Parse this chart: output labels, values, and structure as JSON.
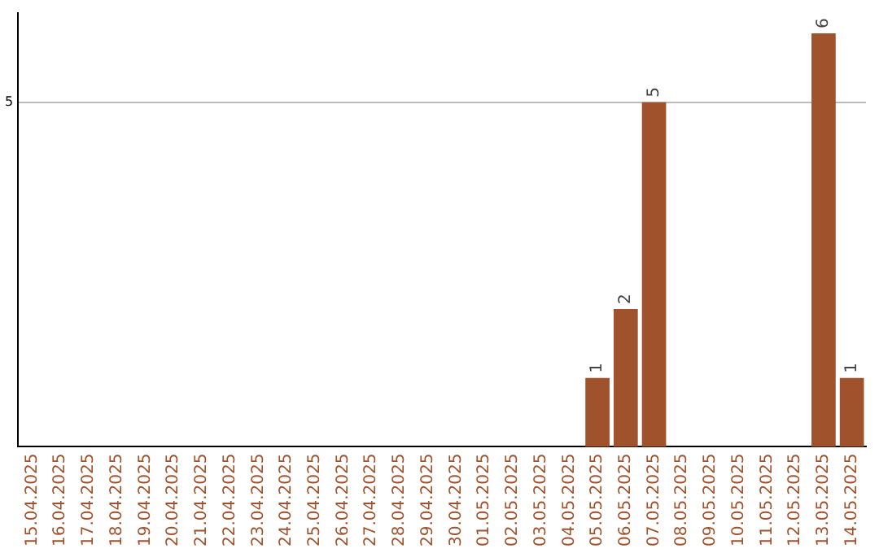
{
  "chart_data": {
    "type": "bar",
    "categories": [
      "15.04.2025",
      "16.04.2025",
      "17.04.2025",
      "18.04.2025",
      "19.04.2025",
      "20.04.2025",
      "21.04.2025",
      "22.04.2025",
      "23.04.2025",
      "24.04.2025",
      "25.04.2025",
      "26.04.2025",
      "27.04.2025",
      "28.04.2025",
      "29.04.2025",
      "30.04.2025",
      "01.05.2025",
      "02.05.2025",
      "03.05.2025",
      "04.05.2025",
      "05.05.2025",
      "06.05.2025",
      "07.05.2025",
      "08.05.2025",
      "09.05.2025",
      "10.05.2025",
      "11.05.2025",
      "12.05.2025",
      "13.05.2025",
      "14.05.2025"
    ],
    "values": [
      null,
      null,
      null,
      null,
      null,
      null,
      null,
      null,
      null,
      null,
      null,
      null,
      null,
      null,
      null,
      null,
      null,
      null,
      null,
      null,
      1,
      2,
      5,
      null,
      null,
      null,
      null,
      null,
      6,
      1
    ],
    "color": "#a0522d",
    "ylim": [
      0,
      6.3
    ],
    "yticks": [
      5
    ],
    "grid": "y",
    "data_labels": true,
    "legend": false
  }
}
